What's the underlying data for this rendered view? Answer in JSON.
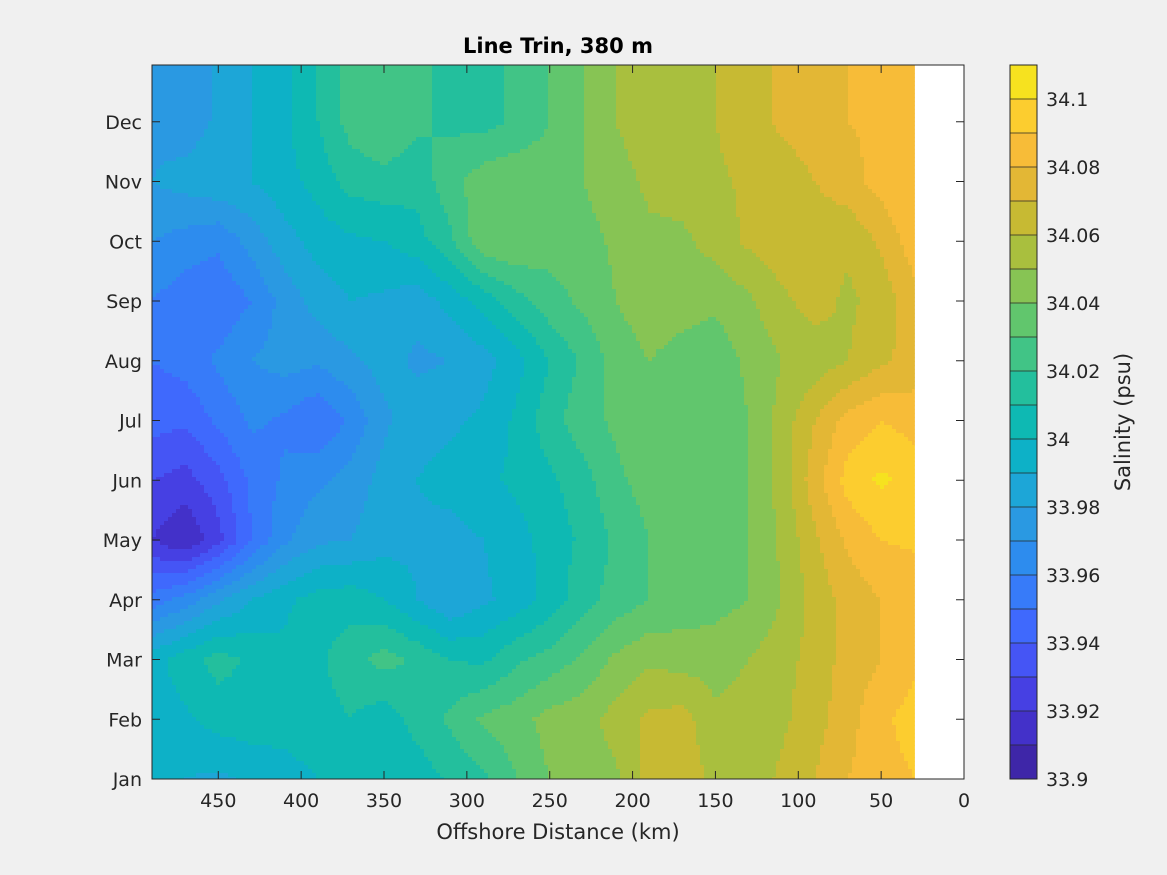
{
  "chart_data": {
    "type": "heatmap",
    "subtype": "filled-contour",
    "title": "Line Trin, 380 m",
    "xlabel": "Offshore Distance (km)",
    "ylabel": "",
    "x_direction": "reversed",
    "xlim": [
      0,
      490
    ],
    "x_ticks": [
      "450",
      "400",
      "350",
      "300",
      "250",
      "200",
      "150",
      "100",
      "50",
      "0"
    ],
    "x_tick_values": [
      450,
      400,
      350,
      300,
      250,
      200,
      150,
      100,
      50,
      0
    ],
    "y_ticks": [
      "Jan",
      "Feb",
      "Mar",
      "Apr",
      "May",
      "Jun",
      "Jul",
      "Aug",
      "Sep",
      "Oct",
      "Nov",
      "Dec"
    ],
    "colorbar": {
      "label": "Salinity (psu)",
      "range": [
        33.9,
        34.11
      ],
      "step": 0.01,
      "tick_labels": [
        "33.9",
        "33.92",
        "33.94",
        "33.96",
        "33.98",
        "34",
        "34.02",
        "34.04",
        "34.06",
        "34.08",
        "34.1"
      ],
      "tick_values": [
        33.9,
        33.92,
        33.94,
        33.96,
        33.98,
        34.0,
        34.02,
        34.04,
        34.06,
        34.08,
        34.1
      ],
      "colormap": "parula"
    },
    "data_x_range": [
      30,
      490
    ],
    "x": [
      490,
      470,
      450,
      430,
      410,
      390,
      370,
      350,
      330,
      310,
      290,
      270,
      250,
      230,
      210,
      190,
      170,
      150,
      130,
      110,
      90,
      70,
      50,
      30
    ],
    "y": [
      "Jan",
      "Feb",
      "Mar",
      "Apr",
      "May",
      "Jun",
      "Jul",
      "Aug",
      "Sep",
      "Oct",
      "Nov",
      "Dec"
    ],
    "z": [
      [
        33.992,
        33.99,
        33.988,
        33.992,
        33.996,
        34.0,
        34.004,
        34.006,
        34.004,
        34.012,
        34.018,
        34.03,
        34.04,
        34.046,
        34.048,
        34.066,
        34.068,
        34.056,
        34.054,
        34.062,
        34.07,
        34.08,
        34.086,
        34.09
      ],
      [
        33.994,
        33.998,
        34.004,
        34.006,
        34.004,
        34.006,
        34.01,
        34.004,
        34.014,
        34.022,
        34.032,
        34.036,
        34.044,
        34.046,
        34.054,
        34.062,
        34.064,
        34.052,
        34.054,
        34.058,
        34.066,
        34.076,
        34.088,
        34.094
      ],
      [
        33.996,
        34.006,
        34.014,
        34.008,
        34.002,
        34.008,
        34.016,
        34.024,
        34.018,
        34.01,
        34.008,
        34.018,
        34.024,
        34.032,
        34.042,
        34.048,
        34.046,
        34.046,
        34.05,
        34.056,
        34.064,
        34.074,
        34.08,
        34.088
      ],
      [
        33.954,
        33.964,
        33.978,
        33.99,
        33.998,
        34.004,
        34.006,
        34.0,
        33.99,
        33.98,
        33.988,
        33.994,
        34.004,
        34.016,
        34.024,
        34.03,
        34.034,
        34.036,
        34.04,
        34.05,
        34.064,
        34.074,
        34.08,
        34.082
      ],
      [
        33.92,
        33.91,
        33.926,
        33.95,
        33.968,
        33.978,
        33.98,
        33.986,
        33.988,
        33.986,
        33.99,
        33.996,
        34.004,
        34.012,
        34.022,
        34.03,
        34.032,
        34.034,
        34.04,
        34.052,
        34.068,
        34.082,
        34.09,
        34.092
      ],
      [
        33.93,
        33.926,
        33.936,
        33.952,
        33.962,
        33.968,
        33.974,
        33.984,
        33.99,
        33.994,
        33.998,
        34.002,
        34.008,
        34.016,
        34.028,
        34.034,
        34.036,
        34.034,
        34.04,
        34.054,
        34.076,
        34.094,
        34.102,
        34.096
      ],
      [
        33.944,
        33.942,
        33.952,
        33.962,
        33.958,
        33.95,
        33.962,
        33.978,
        33.986,
        33.988,
        33.992,
        34.002,
        34.016,
        34.026,
        34.032,
        34.034,
        34.032,
        34.034,
        34.04,
        34.054,
        34.07,
        34.084,
        34.09,
        34.086
      ],
      [
        33.95,
        33.954,
        33.962,
        33.97,
        33.974,
        33.972,
        33.978,
        33.984,
        33.978,
        33.98,
        33.986,
        33.996,
        34.01,
        34.022,
        34.034,
        34.04,
        34.036,
        34.034,
        34.042,
        34.05,
        34.054,
        34.06,
        34.068,
        34.074
      ],
      [
        33.96,
        33.954,
        33.952,
        33.96,
        33.974,
        33.984,
        33.99,
        33.988,
        33.984,
        33.994,
        34.004,
        34.016,
        34.026,
        34.032,
        34.04,
        34.046,
        34.044,
        34.042,
        34.048,
        34.058,
        34.064,
        34.058,
        34.064,
        34.076
      ],
      [
        33.97,
        33.966,
        33.962,
        33.974,
        33.986,
        33.994,
        33.998,
        34.0,
        34.006,
        34.018,
        34.038,
        34.04,
        34.034,
        34.036,
        34.042,
        34.048,
        34.048,
        34.054,
        34.062,
        34.066,
        34.064,
        34.062,
        34.072,
        34.086
      ],
      [
        33.98,
        33.984,
        33.988,
        33.99,
        33.996,
        34.004,
        34.014,
        34.016,
        34.014,
        34.026,
        34.036,
        34.038,
        34.036,
        34.04,
        34.046,
        34.052,
        34.054,
        34.058,
        34.062,
        34.064,
        34.07,
        34.076,
        34.084,
        34.09
      ],
      [
        33.978,
        33.974,
        33.982,
        33.99,
        33.998,
        34.01,
        34.024,
        34.03,
        34.022,
        34.018,
        34.016,
        34.022,
        34.03,
        34.04,
        34.05,
        34.056,
        34.058,
        34.06,
        34.066,
        34.072,
        34.076,
        34.08,
        34.082,
        34.084
      ]
    ]
  }
}
